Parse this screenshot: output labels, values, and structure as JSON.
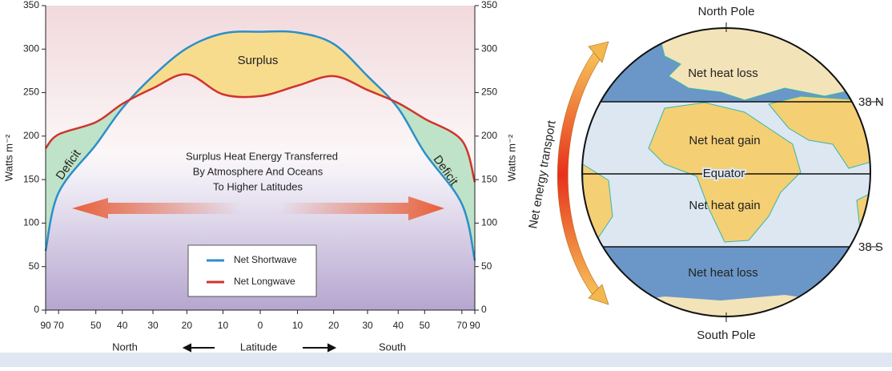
{
  "chart_data": {
    "type": "line",
    "y_label": "Watts m⁻²",
    "x_label": "Latitude",
    "x_left_label": "North",
    "x_right_label": "South",
    "x_scale": "sine",
    "xlim": [
      -90,
      90
    ],
    "xticks": [
      {
        "value": -90,
        "label": "90"
      },
      {
        "value": -70,
        "label": "70"
      },
      {
        "value": -50,
        "label": "50"
      },
      {
        "value": -40,
        "label": "40"
      },
      {
        "value": -30,
        "label": "30"
      },
      {
        "value": -20,
        "label": "20"
      },
      {
        "value": -10,
        "label": "10"
      },
      0,
      10,
      20,
      30,
      40,
      50,
      70,
      90
    ],
    "ylim": [
      0,
      350
    ],
    "yticks": [
      0,
      50,
      100,
      150,
      200,
      250,
      300,
      350
    ],
    "x": [
      -90,
      -70,
      -50,
      -40,
      -30,
      -20,
      -10,
      0,
      10,
      20,
      30,
      40,
      50,
      70,
      90
    ],
    "series": [
      {
        "name": "Net Shortwave",
        "color": "#2b8fc9",
        "values": [
          68,
          135,
          190,
          232,
          269,
          301,
          318,
          320,
          319,
          306,
          269,
          232,
          181,
          122,
          57
        ]
      },
      {
        "name": "Net Longwave",
        "color": "#d0342c",
        "values": [
          186,
          202,
          216,
          237,
          255,
          271,
          248,
          246,
          258,
          269,
          253,
          238,
          220,
          195,
          147
        ]
      }
    ],
    "annotations": {
      "surplus": "Surplus",
      "deficit_left": "Deficit",
      "deficit_right": "Deficit",
      "transfer": [
        "Surplus Heat Energy Transferred",
        "By Atmosphere And Oceans",
        "To Higher Latitudes"
      ]
    }
  },
  "diagram": {
    "north_pole": "North Pole",
    "south_pole": "South Pole",
    "transport": "Net energy transport",
    "zones": [
      "Net heat loss",
      "Net heat gain",
      "Net heat gain",
      "Net heat loss"
    ],
    "lines": [
      "38 N",
      "Equator",
      "38 S"
    ]
  }
}
